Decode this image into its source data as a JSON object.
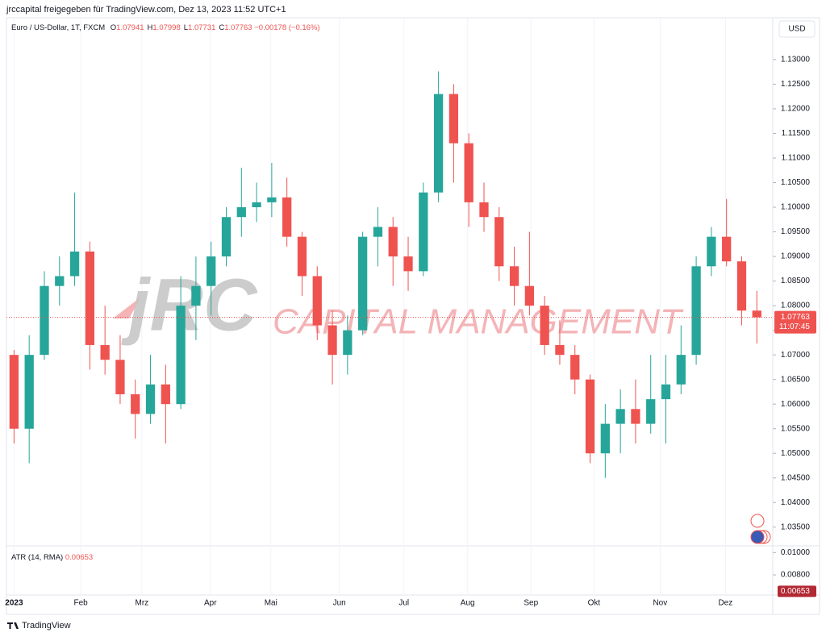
{
  "header": {
    "share_line": "jrccapital freigegeben für TradingView.com, Dez 13, 2023 11:52 UTC+1",
    "symbol": "Euro / US-Dollar, 1T, FXCM",
    "ohlc": [
      {
        "label": "O",
        "value": 1.07941
      },
      {
        "label": "H",
        "value": 1.07998
      },
      {
        "label": "L",
        "value": 1.07731
      },
      {
        "label": "C",
        "value": 1.07763
      }
    ],
    "change": "−0.00178 (−0.16%)",
    "currency": "USD"
  },
  "watermark": {
    "logo": "jRC",
    "text": "CAPITAL MANAGEMENT"
  },
  "footer": {
    "brand": "TradingView"
  },
  "chart_data": {
    "type": "candlestick",
    "up_color": "#26a69a",
    "down_color": "#ef5350",
    "open": [
      1.07,
      1.055,
      1.07,
      1.084,
      1.086,
      1.091,
      1.072,
      1.069,
      1.062,
      1.058,
      1.064,
      1.06,
      1.08,
      1.084,
      1.09,
      1.098,
      1.1,
      1.101,
      1.102,
      1.094,
      1.086,
      1.076,
      1.07,
      1.075,
      1.094,
      1.096,
      1.09,
      1.087,
      1.103,
      1.123,
      1.113,
      1.101,
      1.098,
      1.088,
      1.084,
      1.08,
      1.072,
      1.07,
      1.065,
      1.05,
      1.056,
      1.059,
      1.056,
      1.061,
      1.064,
      1.07,
      1.088,
      1.094,
      1.089,
      1.079
    ],
    "high": [
      1.071,
      1.074,
      1.087,
      1.09,
      1.103,
      1.093,
      1.08,
      1.074,
      1.065,
      1.07,
      1.068,
      1.086,
      1.09,
      1.093,
      1.1,
      1.108,
      1.105,
      1.109,
      1.106,
      1.095,
      1.088,
      1.079,
      1.078,
      1.095,
      1.1,
      1.098,
      1.094,
      1.105,
      1.1276,
      1.125,
      1.115,
      1.105,
      1.1,
      1.092,
      1.095,
      1.082,
      1.077,
      1.072,
      1.066,
      1.06,
      1.063,
      1.065,
      1.07,
      1.07,
      1.076,
      1.09,
      1.096,
      1.1017,
      1.09,
      1.083
    ],
    "low": [
      1.052,
      1.048,
      1.069,
      1.08,
      1.084,
      1.067,
      1.066,
      1.06,
      1.053,
      1.056,
      1.052,
      1.059,
      1.073,
      1.078,
      1.088,
      1.094,
      1.097,
      1.098,
      1.092,
      1.082,
      1.073,
      1.064,
      1.066,
      1.074,
      1.088,
      1.084,
      1.083,
      1.086,
      1.101,
      1.105,
      1.096,
      1.095,
      1.085,
      1.08,
      1.078,
      1.07,
      1.068,
      1.062,
      1.048,
      1.045,
      1.05,
      1.052,
      1.054,
      1.052,
      1.062,
      1.068,
      1.086,
      1.088,
      1.076,
      1.0723
    ],
    "close": [
      1.055,
      1.07,
      1.084,
      1.086,
      1.091,
      1.072,
      1.069,
      1.062,
      1.058,
      1.064,
      1.06,
      1.08,
      1.084,
      1.09,
      1.098,
      1.1,
      1.101,
      1.102,
      1.094,
      1.086,
      1.076,
      1.07,
      1.075,
      1.094,
      1.096,
      1.09,
      1.087,
      1.103,
      1.123,
      1.113,
      1.101,
      1.098,
      1.088,
      1.084,
      1.08,
      1.072,
      1.07,
      1.065,
      1.05,
      1.056,
      1.059,
      1.056,
      1.061,
      1.064,
      1.07,
      1.088,
      1.094,
      1.089,
      1.079,
      1.07763
    ],
    "xlim": [
      -0.5,
      50.05
    ],
    "xticks": [
      {
        "value": 0,
        "label": "2023"
      },
      {
        "value": 4.4,
        "label": "Feb"
      },
      {
        "value": 8.43,
        "label": "Mrz"
      },
      {
        "value": 12.95,
        "label": "Apr"
      },
      {
        "value": 16.94,
        "label": "Mai"
      },
      {
        "value": 21.46,
        "label": "Jun"
      },
      {
        "value": 25.72,
        "label": "Jul"
      },
      {
        "value": 29.92,
        "label": "Aug"
      },
      {
        "value": 34.1,
        "label": "Sep"
      },
      {
        "value": 38.26,
        "label": "Okt"
      },
      {
        "value": 42.62,
        "label": "Nov"
      },
      {
        "value": 46.93,
        "label": "Dez"
      }
    ],
    "ylim": [
      1.0312,
      1.1385
    ],
    "yticks": [
      {
        "value": 1.035,
        "label": "1.03500"
      },
      {
        "value": 1.04,
        "label": "1.04000"
      },
      {
        "value": 1.045,
        "label": "1.04500"
      },
      {
        "value": 1.05,
        "label": "1.05000"
      },
      {
        "value": 1.055,
        "label": "1.05500"
      },
      {
        "value": 1.06,
        "label": "1.06000"
      },
      {
        "value": 1.065,
        "label": "1.06500"
      },
      {
        "value": 1.07,
        "label": "1.07000"
      },
      {
        "value": 1.075,
        "label": "1.07500"
      },
      {
        "value": 1.08,
        "label": "1.08000"
      },
      {
        "value": 1.085,
        "label": "1.08500"
      },
      {
        "value": 1.09,
        "label": "1.09000"
      },
      {
        "value": 1.095,
        "label": "1.09500"
      },
      {
        "value": 1.1,
        "label": "1.10000"
      },
      {
        "value": 1.105,
        "label": "1.10500"
      },
      {
        "value": 1.11,
        "label": "1.11000"
      },
      {
        "value": 1.115,
        "label": "1.11500"
      },
      {
        "value": 1.12,
        "label": "1.12000"
      },
      {
        "value": 1.125,
        "label": "1.12500"
      },
      {
        "value": 1.13,
        "label": "1.13000"
      }
    ],
    "last_price": 1.07763,
    "countdown": "11:07:45",
    "atr": {
      "label": "ATR (14, RMA)",
      "value": 0.00653,
      "ylim": [
        0.0062,
        0.0106
      ],
      "yticks": [
        {
          "value": 0.008,
          "label": "0.00800"
        },
        {
          "value": 0.01,
          "label": "0.01000"
        }
      ]
    }
  }
}
